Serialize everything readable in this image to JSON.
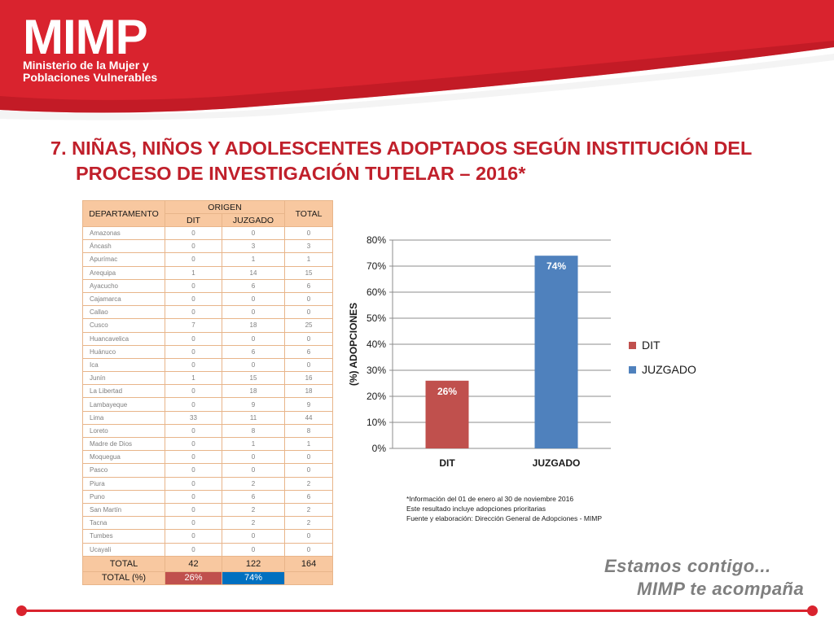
{
  "brand": {
    "logo": "MIMP",
    "subtitle_line1": "Ministerio de la Mujer y",
    "subtitle_line2": "Poblaciones Vulnerables",
    "accent_color": "#d9232e"
  },
  "title": {
    "line1": "7. NIÑAS, NIÑOS Y ADOLESCENTES ADOPTADOS SEGÚN INSTITUCIÓN DEL",
    "line2": "PROCESO DE INVESTIGACIÓN TUTELAR – 2016*"
  },
  "table": {
    "headers": {
      "departamento": "DEPARTAMENTO",
      "origen": "ORIGEN",
      "total": "TOTAL",
      "dit": "DIT",
      "juzgado": "JUZGADO"
    },
    "rows": [
      {
        "name": "Amazonas",
        "dit": "0",
        "juzgado": "0",
        "total": "0"
      },
      {
        "name": "Áncash",
        "dit": "0",
        "juzgado": "3",
        "total": "3"
      },
      {
        "name": "Apurímac",
        "dit": "0",
        "juzgado": "1",
        "total": "1"
      },
      {
        "name": "Arequipa",
        "dit": "1",
        "juzgado": "14",
        "total": "15"
      },
      {
        "name": "Ayacucho",
        "dit": "0",
        "juzgado": "6",
        "total": "6"
      },
      {
        "name": "Cajamarca",
        "dit": "0",
        "juzgado": "0",
        "total": "0"
      },
      {
        "name": "Callao",
        "dit": "0",
        "juzgado": "0",
        "total": "0"
      },
      {
        "name": "Cusco",
        "dit": "7",
        "juzgado": "18",
        "total": "25"
      },
      {
        "name": "Huancavelica",
        "dit": "0",
        "juzgado": "0",
        "total": "0"
      },
      {
        "name": "Huánuco",
        "dit": "0",
        "juzgado": "6",
        "total": "6"
      },
      {
        "name": "Ica",
        "dit": "0",
        "juzgado": "0",
        "total": "0"
      },
      {
        "name": "Junín",
        "dit": "1",
        "juzgado": "15",
        "total": "16"
      },
      {
        "name": "La Libertad",
        "dit": "0",
        "juzgado": "18",
        "total": "18"
      },
      {
        "name": "Lambayeque",
        "dit": "0",
        "juzgado": "9",
        "total": "9"
      },
      {
        "name": "Lima",
        "dit": "33",
        "juzgado": "11",
        "total": "44"
      },
      {
        "name": "Loreto",
        "dit": "0",
        "juzgado": "8",
        "total": "8"
      },
      {
        "name": "Madre de Dios",
        "dit": "0",
        "juzgado": "1",
        "total": "1"
      },
      {
        "name": "Moquegua",
        "dit": "0",
        "juzgado": "0",
        "total": "0"
      },
      {
        "name": "Pasco",
        "dit": "0",
        "juzgado": "0",
        "total": "0"
      },
      {
        "name": "Piura",
        "dit": "0",
        "juzgado": "2",
        "total": "2"
      },
      {
        "name": "Puno",
        "dit": "0",
        "juzgado": "6",
        "total": "6"
      },
      {
        "name": "San Martín",
        "dit": "0",
        "juzgado": "2",
        "total": "2"
      },
      {
        "name": "Tacna",
        "dit": "0",
        "juzgado": "2",
        "total": "2"
      },
      {
        "name": "Tumbes",
        "dit": "0",
        "juzgado": "0",
        "total": "0"
      },
      {
        "name": "Ucayali",
        "dit": "0",
        "juzgado": "0",
        "total": "0"
      }
    ],
    "total_row": {
      "label": "TOTAL",
      "dit": "42",
      "juzgado": "122",
      "total": "164"
    },
    "pct_row": {
      "label": "TOTAL (%)",
      "dit": "26%",
      "juzgado": "74%",
      "total": ""
    }
  },
  "chart_data": {
    "type": "bar",
    "categories": [
      "DIT",
      "JUZGADO"
    ],
    "values": [
      26,
      74
    ],
    "data_labels": [
      "26%",
      "74%"
    ],
    "colors": [
      "#c0504d",
      "#4f81bd"
    ],
    "ylabel": "(%) ADOPCIONES",
    "ylim": [
      0,
      80
    ],
    "yticks": [
      0,
      10,
      20,
      30,
      40,
      50,
      60,
      70,
      80
    ],
    "ytick_labels": [
      "0%",
      "10%",
      "20%",
      "30%",
      "40%",
      "50%",
      "60%",
      "70%",
      "80%"
    ],
    "grid": true,
    "legend": {
      "placement": "right",
      "entries": [
        "DIT",
        "JUZGADO"
      ]
    }
  },
  "notes": [
    "*Información del  01 de enero al 30 de noviembre 2016",
    "Este resultado incluye adopciones prioritarias",
    "Fuente y elaboración: Dirección General de Adopciones - MIMP"
  ],
  "slogan": {
    "line1": "Estamos contigo...",
    "line2": "MIMP te acompaña"
  }
}
